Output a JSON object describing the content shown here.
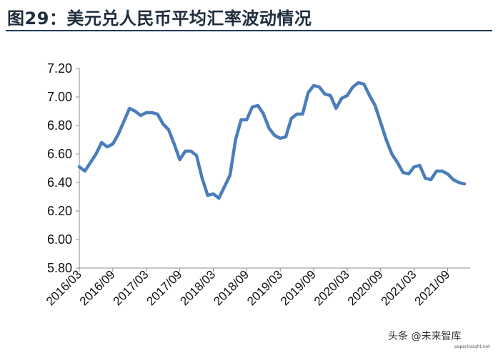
{
  "header": {
    "title": "图29：美元兑人民币平均汇率波动情况"
  },
  "chart_data": {
    "type": "line",
    "title": "",
    "xlabel": "",
    "ylabel": "",
    "ylim": [
      5.8,
      7.2
    ],
    "yticks": [
      "7.20",
      "7.00",
      "6.80",
      "6.60",
      "6.40",
      "6.20",
      "6.00",
      "5.80"
    ],
    "xtick_labels": [
      "2016/03",
      "2016/09",
      "2017/03",
      "2017/09",
      "2018/03",
      "2018/09",
      "2019/03",
      "2019/09",
      "2020/03",
      "2020/09",
      "2021/03",
      "2021/09"
    ],
    "grid": false,
    "legend": "none",
    "series_color": "#4a7ebb",
    "series": [
      {
        "x": [
          "2016/03",
          "2016/04",
          "2016/05",
          "2016/06",
          "2016/07",
          "2016/08",
          "2016/09",
          "2016/10",
          "2016/11",
          "2016/12",
          "2017/01",
          "2017/02",
          "2017/03",
          "2017/04",
          "2017/05",
          "2017/06",
          "2017/07",
          "2017/08",
          "2017/09",
          "2017/10",
          "2017/11",
          "2017/12",
          "2018/01",
          "2018/02",
          "2018/03",
          "2018/04",
          "2018/05",
          "2018/06",
          "2018/07",
          "2018/08",
          "2018/09",
          "2018/10",
          "2018/11",
          "2018/12",
          "2019/01",
          "2019/02",
          "2019/03",
          "2019/04",
          "2019/05",
          "2019/06",
          "2019/07",
          "2019/08",
          "2019/09",
          "2019/10",
          "2019/11",
          "2019/12",
          "2020/01",
          "2020/02",
          "2020/03",
          "2020/04",
          "2020/05",
          "2020/06",
          "2020/07",
          "2020/08",
          "2020/09",
          "2020/10",
          "2020/11",
          "2020/12",
          "2021/01",
          "2021/02",
          "2021/03",
          "2021/04",
          "2021/05",
          "2021/06",
          "2021/07",
          "2021/08",
          "2021/09",
          "2021/10",
          "2021/11",
          "2021/12"
        ],
        "values": [
          6.51,
          6.48,
          6.54,
          6.6,
          6.68,
          6.65,
          6.67,
          6.74,
          6.83,
          6.92,
          6.9,
          6.87,
          6.89,
          6.89,
          6.88,
          6.81,
          6.77,
          6.67,
          6.56,
          6.62,
          6.62,
          6.59,
          6.43,
          6.31,
          6.32,
          6.29,
          6.37,
          6.45,
          6.7,
          6.84,
          6.84,
          6.93,
          6.94,
          6.88,
          6.78,
          6.73,
          6.71,
          6.72,
          6.85,
          6.88,
          6.88,
          7.03,
          7.08,
          7.07,
          7.02,
          7.01,
          6.92,
          6.99,
          7.01,
          7.07,
          7.1,
          7.09,
          7.01,
          6.94,
          6.82,
          6.7,
          6.6,
          6.54,
          6.47,
          6.46,
          6.51,
          6.52,
          6.43,
          6.42,
          6.48,
          6.48,
          6.46,
          6.42,
          6.4,
          6.39
        ]
      }
    ]
  },
  "watermark": {
    "text": "头条 @未来智库",
    "url": "paperinsight.net"
  }
}
